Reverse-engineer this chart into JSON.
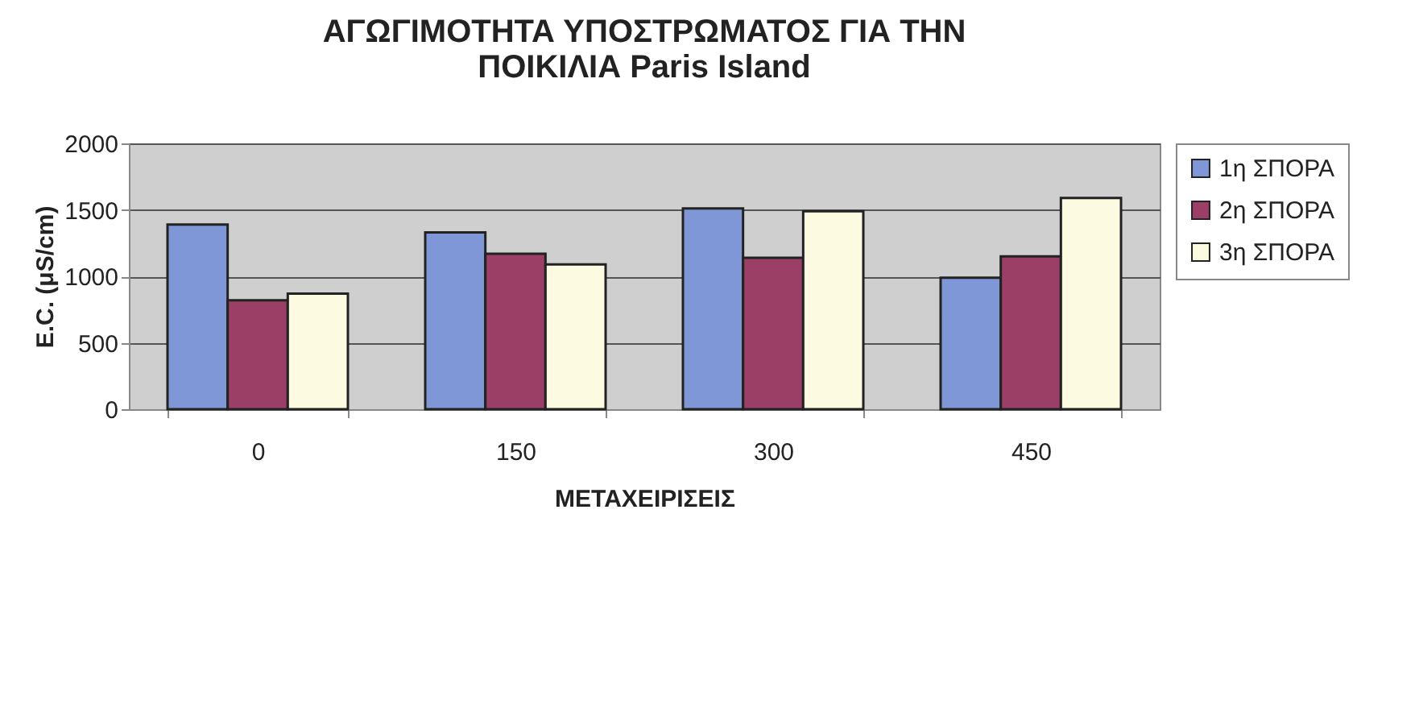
{
  "chart_data": {
    "type": "bar",
    "title": [
      "ΑΓΩΓΙΜΟΤΗΤΑ ΥΠΟΣΤΡΩΜΑΤΟΣ ΓΙΑ ΤΗΝ",
      "ΠΟΙΚΙΛΙΑ Paris Island"
    ],
    "xlabel": "ΜΕΤΑΧΕΙΡΙΣΕΙΣ",
    "ylabel": "E.C. (μS/cm)",
    "categories": [
      "0",
      "150",
      "300",
      "450"
    ],
    "series": [
      {
        "name": "1η ΣΠΟΡΑ",
        "color": "#7f97d6",
        "values": [
          1390,
          1330,
          1510,
          990
        ]
      },
      {
        "name": "2η ΣΠΟΡΑ",
        "color": "#9b3f66",
        "values": [
          820,
          1170,
          1140,
          1150
        ]
      },
      {
        "name": "3η ΣΠΟΡΑ",
        "color": "#fcfae0",
        "values": [
          870,
          1090,
          1490,
          1590
        ]
      }
    ],
    "ylim": [
      0,
      2000
    ],
    "yticks": [
      0,
      500,
      1000,
      1500,
      2000
    ],
    "grid": "y",
    "legend": "right"
  }
}
